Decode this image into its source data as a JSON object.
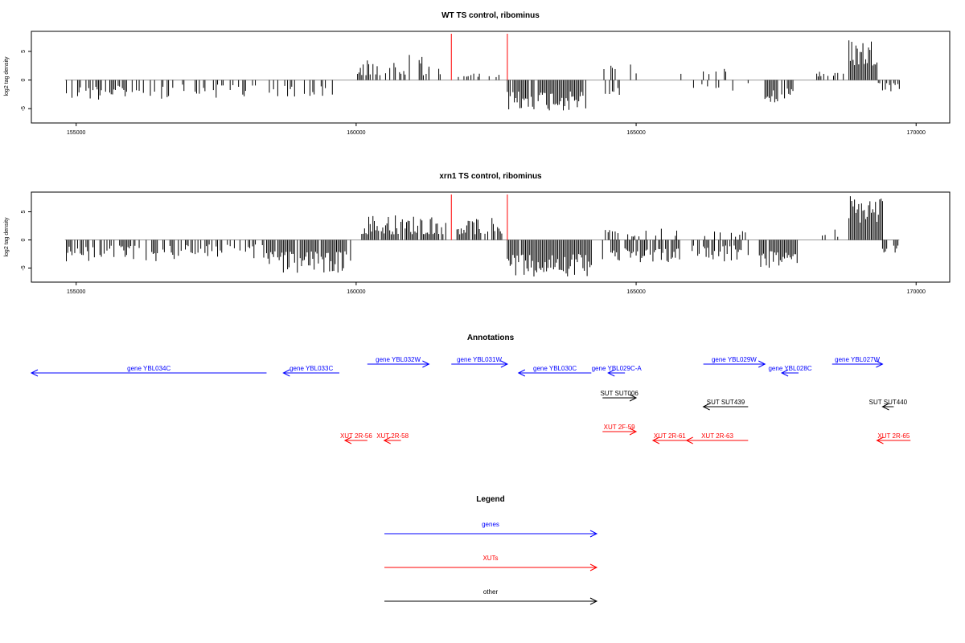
{
  "chart_data": [
    {
      "type": "bar",
      "title": "WT TS control, ribominus",
      "xlabel": "",
      "ylabel": "log2 tag density",
      "xlim": [
        154200,
        170600
      ],
      "ylim": [
        -7.5,
        8.5
      ],
      "xticks": [
        155000,
        160000,
        165000,
        170000
      ],
      "yticks": [
        -5,
        0,
        5
      ],
      "grid": false,
      "baseline": 0,
      "markers": [
        161700,
        162700
      ],
      "segments": [
        {
          "from": 154800,
          "to": 156000,
          "side": "neg",
          "min": 1.0,
          "max": 3.5,
          "density": 0.55
        },
        {
          "from": 156000,
          "to": 158200,
          "side": "neg",
          "min": 0.8,
          "max": 3.5,
          "density": 0.35
        },
        {
          "from": 158400,
          "to": 159600,
          "side": "neg",
          "min": 1.0,
          "max": 3.0,
          "density": 0.4
        },
        {
          "from": 160000,
          "to": 161300,
          "side": "pos",
          "min": 0.8,
          "max": 4.5,
          "density": 0.6
        },
        {
          "from": 161300,
          "to": 161600,
          "side": "pos",
          "min": 1.0,
          "max": 2.5,
          "density": 0.3
        },
        {
          "from": 161800,
          "to": 162600,
          "side": "pos",
          "min": 0.5,
          "max": 1.5,
          "density": 0.2
        },
        {
          "from": 162700,
          "to": 164100,
          "side": "neg",
          "min": 2.0,
          "max": 5.5,
          "density": 0.95
        },
        {
          "from": 164400,
          "to": 164700,
          "side": "neg",
          "min": 1.0,
          "max": 3.0,
          "density": 0.4
        },
        {
          "from": 164400,
          "to": 165000,
          "side": "pos",
          "min": 1.0,
          "max": 3.0,
          "density": 0.2
        },
        {
          "from": 165800,
          "to": 167000,
          "side": "pos",
          "min": 0.8,
          "max": 2.0,
          "density": 0.2
        },
        {
          "from": 165800,
          "to": 167000,
          "side": "neg",
          "min": 0.5,
          "max": 2.0,
          "density": 0.15
        },
        {
          "from": 167300,
          "to": 167800,
          "side": "neg",
          "min": 1.5,
          "max": 4.0,
          "density": 0.8
        },
        {
          "from": 168200,
          "to": 168700,
          "side": "pos",
          "min": 0.5,
          "max": 2.0,
          "density": 0.4
        },
        {
          "from": 168800,
          "to": 169300,
          "side": "pos",
          "min": 2.5,
          "max": 7.5,
          "density": 0.95
        },
        {
          "from": 169300,
          "to": 169700,
          "side": "neg",
          "min": 0.5,
          "max": 2.5,
          "density": 0.5
        }
      ]
    },
    {
      "type": "bar",
      "title": "xrn1 TS control, ribominus",
      "xlabel": "",
      "ylabel": "log2 tag density",
      "xlim": [
        154200,
        170600
      ],
      "ylim": [
        -7.5,
        8.5
      ],
      "xticks": [
        155000,
        160000,
        165000,
        170000
      ],
      "yticks": [
        -5,
        0,
        5
      ],
      "grid": false,
      "baseline": 0,
      "markers": [
        161700,
        162700
      ],
      "segments": [
        {
          "from": 154800,
          "to": 156500,
          "side": "neg",
          "min": 1.0,
          "max": 4.0,
          "density": 0.6
        },
        {
          "from": 156500,
          "to": 158400,
          "side": "neg",
          "min": 0.8,
          "max": 3.5,
          "density": 0.55
        },
        {
          "from": 158400,
          "to": 159900,
          "side": "neg",
          "min": 2.0,
          "max": 6.0,
          "density": 0.9
        },
        {
          "from": 160100,
          "to": 161600,
          "side": "pos",
          "min": 1.0,
          "max": 4.5,
          "density": 0.9
        },
        {
          "from": 161800,
          "to": 162600,
          "side": "pos",
          "min": 1.0,
          "max": 4.0,
          "density": 0.85
        },
        {
          "from": 162700,
          "to": 164200,
          "side": "neg",
          "min": 2.5,
          "max": 6.5,
          "density": 0.98
        },
        {
          "from": 164400,
          "to": 165800,
          "side": "neg",
          "min": 1.5,
          "max": 4.0,
          "density": 0.7
        },
        {
          "from": 164400,
          "to": 165800,
          "side": "pos",
          "min": 0.5,
          "max": 2.0,
          "density": 0.25
        },
        {
          "from": 166000,
          "to": 167000,
          "side": "neg",
          "min": 1.0,
          "max": 4.0,
          "density": 0.6
        },
        {
          "from": 166000,
          "to": 167000,
          "side": "pos",
          "min": 0.5,
          "max": 1.8,
          "density": 0.2
        },
        {
          "from": 167200,
          "to": 167900,
          "side": "neg",
          "min": 2.0,
          "max": 5.0,
          "density": 0.85
        },
        {
          "from": 168300,
          "to": 168700,
          "side": "pos",
          "min": 0.5,
          "max": 2.0,
          "density": 0.3
        },
        {
          "from": 168800,
          "to": 169400,
          "side": "pos",
          "min": 3.0,
          "max": 8.2,
          "density": 0.98
        },
        {
          "from": 169400,
          "to": 169700,
          "side": "neg",
          "min": 1.0,
          "max": 2.5,
          "density": 0.6
        }
      ]
    }
  ],
  "annotations": {
    "title": "Annotations",
    "features": [
      {
        "label": "gene YBL034C",
        "from": 154200,
        "to": 158400,
        "strand": "-",
        "color": "#0000ff",
        "row": 1
      },
      {
        "label": "gene YBL033C",
        "from": 158700,
        "to": 159700,
        "strand": "-",
        "color": "#0000ff",
        "row": 0
      },
      {
        "label": "gene YBL032W",
        "from": 160200,
        "to": 161300,
        "strand": "+",
        "color": "#0000ff",
        "row": 2
      },
      {
        "label": "gene YBL031W",
        "from": 161700,
        "to": 162700,
        "strand": "+",
        "color": "#0000ff",
        "row": 2
      },
      {
        "label": "gene YBL030C",
        "from": 162900,
        "to": 164200,
        "strand": "-",
        "color": "#0000ff",
        "row": 0
      },
      {
        "label": "gene YBL029C-A",
        "from": 164500,
        "to": 164800,
        "strand": "-",
        "color": "#0000ff",
        "row": 0
      },
      {
        "label": "gene YBL029W",
        "from": 166200,
        "to": 167300,
        "strand": "+",
        "color": "#0000ff",
        "row": 2
      },
      {
        "label": "gene YBL028C",
        "from": 167600,
        "to": 167900,
        "strand": "-",
        "color": "#0000ff",
        "row": 0
      },
      {
        "label": "gene YBL027W",
        "from": 168500,
        "to": 169400,
        "strand": "+",
        "color": "#0000ff",
        "row": 2
      },
      {
        "label": "SUT SUT006",
        "from": 164400,
        "to": 165000,
        "strand": "+",
        "color": "#000000",
        "row": 3
      },
      {
        "label": "SUT SUT439",
        "from": 166200,
        "to": 167000,
        "strand": "-",
        "color": "#000000",
        "row": 4
      },
      {
        "label": "SUT SUT440",
        "from": 169400,
        "to": 169600,
        "strand": "-",
        "color": "#000000",
        "row": 4
      },
      {
        "label": "XUT 2R-56",
        "from": 159800,
        "to": 160200,
        "strand": "-",
        "color": "#ff0000",
        "row": 5
      },
      {
        "label": "XUT 2R-58",
        "from": 160500,
        "to": 160800,
        "strand": "-",
        "color": "#ff0000",
        "row": 5
      },
      {
        "label": "XUT 2F-59",
        "from": 164400,
        "to": 165000,
        "strand": "+",
        "color": "#ff0000",
        "row": 6
      },
      {
        "label": "XUT 2R-61",
        "from": 165300,
        "to": 165900,
        "strand": "-",
        "color": "#ff0000",
        "row": 5
      },
      {
        "label": "XUT 2R-63",
        "from": 165900,
        "to": 167000,
        "strand": "-",
        "color": "#ff0000",
        "row": 5
      },
      {
        "label": "XUT 2R-65",
        "from": 169300,
        "to": 169900,
        "strand": "-",
        "color": "#ff0000",
        "row": 5
      }
    ]
  },
  "legend": {
    "title": "Legend",
    "items": [
      {
        "label": "genes",
        "color": "#0000ff"
      },
      {
        "label": "XUTs",
        "color": "#ff0000"
      },
      {
        "label": "other",
        "color": "#000000"
      }
    ]
  }
}
